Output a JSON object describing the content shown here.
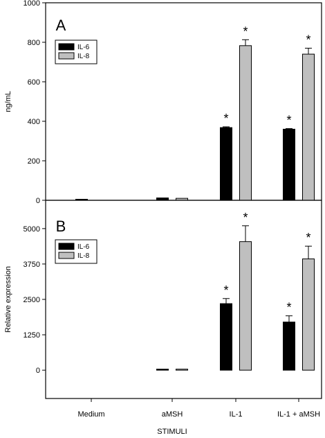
{
  "chart_data": [
    {
      "type": "bar",
      "panel_label": "A",
      "ylabel": "ng/mL",
      "ylim": [
        0,
        1000
      ],
      "yticks": [
        0,
        200,
        400,
        600,
        800,
        1000
      ],
      "legend_position": "top-left",
      "categories": [
        "Medium",
        "aMSH",
        "IL-1",
        "IL-1 + aMSH"
      ],
      "series": [
        {
          "name": "IL-6",
          "color": "#000000",
          "values": [
            3,
            12,
            368,
            360
          ],
          "errors": [
            0,
            0,
            4,
            3
          ]
        },
        {
          "name": "IL-8",
          "color": "#bfbfbf",
          "values": [
            0,
            10,
            783,
            740
          ],
          "errors": [
            0,
            0,
            30,
            30
          ]
        }
      ],
      "significance": [
        {
          "series": 0,
          "category": 2,
          "mark": "*"
        },
        {
          "series": 1,
          "category": 2,
          "mark": "*"
        },
        {
          "series": 0,
          "category": 3,
          "mark": "*"
        },
        {
          "series": 1,
          "category": 3,
          "mark": "*"
        }
      ]
    },
    {
      "type": "bar",
      "panel_label": "B",
      "ylabel": "Relative expression",
      "ylim": [
        -1000,
        6000
      ],
      "yticks": [
        0,
        1250,
        2500,
        3750,
        5000
      ],
      "legend_position": "top-left",
      "categories": [
        "Medium",
        "aMSH",
        "IL-1",
        "IL-1 + aMSH"
      ],
      "series": [
        {
          "name": "IL-6",
          "color": "#000000",
          "values": [
            0,
            1,
            2350,
            1700
          ],
          "errors": [
            0,
            0,
            180,
            220
          ]
        },
        {
          "name": "IL-8",
          "color": "#bfbfbf",
          "values": [
            0,
            1,
            4540,
            3930
          ],
          "errors": [
            0,
            0,
            560,
            450
          ]
        }
      ],
      "significance": [
        {
          "series": 0,
          "category": 2,
          "mark": "*"
        },
        {
          "series": 1,
          "category": 2,
          "mark": "*"
        },
        {
          "series": 0,
          "category": 3,
          "mark": "*"
        },
        {
          "series": 1,
          "category": 3,
          "mark": "*"
        }
      ]
    }
  ],
  "xlabel": "STIMULI"
}
